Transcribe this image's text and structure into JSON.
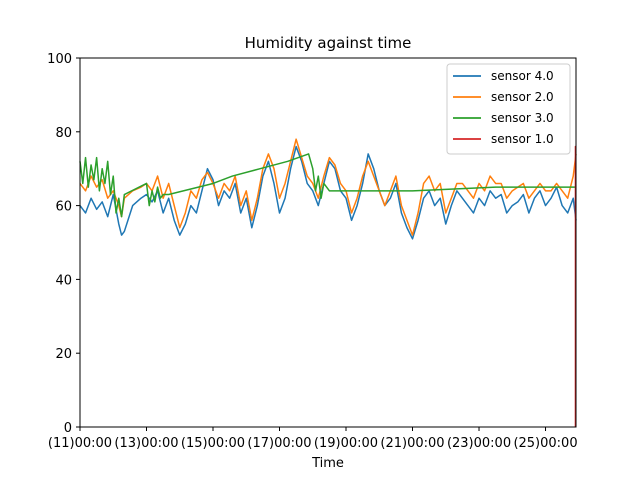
{
  "chart_data": {
    "type": "line",
    "title": "Humidity against  time",
    "xlabel": "Time",
    "ylabel": "",
    "x_unit": "hours",
    "xlim": [
      0,
      358
    ],
    "ylim": [
      0,
      100
    ],
    "yticks": [
      0,
      20,
      40,
      60,
      80,
      100
    ],
    "xticks": [
      {
        "x": 0,
        "label": "(11)00:00"
      },
      {
        "x": 48,
        "label": "(13)00:00"
      },
      {
        "x": 96,
        "label": "(15)00:00"
      },
      {
        "x": 144,
        "label": "(17)00:00"
      },
      {
        "x": 192,
        "label": "(19)00:00"
      },
      {
        "x": 240,
        "label": "(21)00:00"
      },
      {
        "x": 288,
        "label": "(23)00:00"
      },
      {
        "x": 336,
        "label": "(25)00:00"
      }
    ],
    "grid": false,
    "legend": "upper right",
    "series": [
      {
        "name": "sensor 4.0",
        "color": "#1f77b4",
        "x": [
          0,
          4,
          8,
          12,
          16,
          20,
          24,
          28,
          30,
          32,
          38,
          44,
          48,
          52,
          56,
          60,
          64,
          68,
          72,
          76,
          80,
          84,
          88,
          92,
          96,
          100,
          104,
          108,
          112,
          116,
          120,
          124,
          128,
          132,
          136,
          140,
          144,
          148,
          152,
          156,
          160,
          164,
          168,
          172,
          176,
          180,
          184,
          188,
          192,
          196,
          200,
          204,
          208,
          212,
          216,
          220,
          224,
          228,
          232,
          236,
          240,
          244,
          248,
          252,
          256,
          260,
          264,
          268,
          272,
          276,
          280,
          284,
          288,
          292,
          296,
          300,
          304,
          308,
          312,
          316,
          320,
          324,
          328,
          332,
          336,
          340,
          344,
          348,
          352,
          356,
          358
        ],
        "y": [
          60,
          58,
          62,
          59,
          61,
          57,
          63,
          55,
          52,
          53,
          60,
          62,
          63,
          61,
          64,
          58,
          62,
          56,
          52,
          55,
          60,
          58,
          64,
          70,
          67,
          60,
          64,
          62,
          66,
          58,
          62,
          54,
          60,
          68,
          72,
          66,
          58,
          62,
          70,
          76,
          72,
          66,
          64,
          60,
          66,
          72,
          70,
          64,
          62,
          56,
          60,
          66,
          74,
          70,
          64,
          60,
          62,
          66,
          58,
          54,
          51,
          56,
          62,
          64,
          60,
          62,
          55,
          60,
          64,
          62,
          60,
          58,
          62,
          60,
          64,
          62,
          63,
          58,
          60,
          61,
          63,
          58,
          62,
          64,
          60,
          62,
          65,
          60,
          58,
          62,
          56
        ]
      },
      {
        "name": "sensor 2.0",
        "color": "#ff7f0e",
        "x": [
          0,
          4,
          8,
          12,
          16,
          20,
          24,
          28,
          30,
          32,
          38,
          44,
          48,
          52,
          56,
          60,
          64,
          68,
          72,
          76,
          80,
          84,
          88,
          92,
          96,
          100,
          104,
          108,
          112,
          116,
          120,
          124,
          128,
          132,
          136,
          140,
          144,
          148,
          152,
          156,
          160,
          164,
          168,
          172,
          176,
          180,
          184,
          188,
          192,
          196,
          200,
          204,
          208,
          212,
          216,
          220,
          224,
          228,
          232,
          236,
          240,
          244,
          248,
          252,
          256,
          260,
          264,
          268,
          272,
          276,
          280,
          284,
          288,
          292,
          296,
          300,
          304,
          308,
          312,
          316,
          320,
          324,
          328,
          332,
          336,
          340,
          344,
          348,
          352,
          356,
          358
        ],
        "y": [
          66,
          64,
          68,
          65,
          67,
          62,
          64,
          60,
          57,
          62,
          64,
          65,
          66,
          64,
          68,
          62,
          66,
          60,
          54,
          58,
          64,
          62,
          67,
          69,
          66,
          62,
          66,
          64,
          68,
          60,
          64,
          56,
          62,
          70,
          74,
          70,
          62,
          66,
          72,
          78,
          73,
          68,
          66,
          62,
          68,
          73,
          71,
          66,
          64,
          58,
          62,
          68,
          72,
          68,
          64,
          60,
          64,
          68,
          60,
          56,
          52,
          58,
          66,
          68,
          64,
          66,
          58,
          62,
          66,
          66,
          64,
          62,
          66,
          64,
          68,
          66,
          66,
          62,
          64,
          65,
          66,
          62,
          64,
          66,
          64,
          64,
          66,
          64,
          62,
          68,
          74
        ]
      },
      {
        "name": "sensor 3.0",
        "color": "#2ca02c",
        "x": [
          0,
          2,
          4,
          6,
          8,
          10,
          12,
          14,
          16,
          18,
          20,
          22,
          24,
          26,
          28,
          30,
          32,
          48,
          50,
          52,
          54,
          56,
          58,
          60,
          64,
          96,
          110,
          130,
          150,
          165,
          168,
          170,
          172,
          174,
          176,
          180,
          240,
          300,
          358
        ],
        "y": [
          72,
          66,
          73,
          65,
          71,
          67,
          73,
          64,
          70,
          66,
          72,
          63,
          68,
          58,
          62,
          57,
          63,
          66,
          60,
          64,
          61,
          65,
          62,
          63,
          63,
          66,
          68,
          70,
          72,
          74,
          70,
          64,
          68,
          62,
          66,
          64,
          64,
          65,
          65
        ]
      },
      {
        "name": "sensor 1.0",
        "color": "#d62728",
        "x": [
          357.6,
          357.6,
          357.8,
          357.8
        ],
        "y": [
          0,
          76,
          60,
          0
        ]
      }
    ]
  }
}
